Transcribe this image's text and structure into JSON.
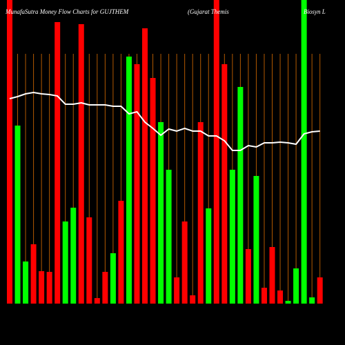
{
  "chart_data": {
    "type": "bar",
    "title": "MunafaSutra  Money Flow  Charts for GUJTHEM",
    "subtitle": "(Gujarat Themis",
    "subtitle2": "Biosyn  L",
    "categories": [
      null,
      null,
      null,
      null,
      null,
      null,
      null,
      null,
      null,
      null,
      null,
      null,
      null,
      null,
      null,
      null,
      null,
      null,
      null,
      null,
      null,
      null,
      null,
      null,
      null,
      null,
      null,
      null,
      null,
      null,
      null,
      null,
      null,
      null,
      null,
      null,
      null,
      null,
      null,
      null
    ],
    "values": [
      440,
      258,
      61,
      86,
      47,
      46,
      408,
      119,
      139,
      405,
      125,
      8,
      46,
      73,
      149,
      358,
      347,
      399,
      327,
      263,
      194,
      38,
      119,
      12,
      263,
      138,
      440,
      347,
      194,
      314,
      79,
      185,
      23,
      82,
      19,
      4,
      51,
      440,
      9,
      38
    ],
    "colors": [
      "#ff0000",
      "#00ff00",
      "#00ff00",
      "#ff0000",
      "#ff0000",
      "#ff0000",
      "#ff0000",
      "#00ff00",
      "#00ff00",
      "#ff0000",
      "#ff0000",
      "#ff0000",
      "#ff0000",
      "#00ff00",
      "#ff0000",
      "#00ff00",
      "#ff0000",
      "#ff0000",
      "#ff0000",
      "#00ff00",
      "#00ff00",
      "#ff0000",
      "#ff0000",
      "#ff0000",
      "#ff0000",
      "#00ff00",
      "#ff0000",
      "#ff0000",
      "#00ff00",
      "#00ff00",
      "#ff0000",
      "#00ff00",
      "#ff0000",
      "#ff0000",
      "#ff0000",
      "#00ff00",
      "#00ff00",
      "#00ff00",
      "#00ff00",
      "#ff0000"
    ],
    "line_values": [
      297,
      300,
      304,
      306,
      304,
      303,
      301,
      289,
      289,
      291,
      288,
      288,
      288,
      286,
      286,
      275,
      278,
      263,
      254,
      244,
      253,
      250,
      254,
      250,
      250,
      243,
      243,
      236,
      222,
      222,
      229,
      227,
      233,
      233,
      234,
      233,
      231,
      246,
      249,
      250
    ],
    "line_color": "#ffffff",
    "ylim": [
      0,
      440
    ],
    "grid": true
  }
}
